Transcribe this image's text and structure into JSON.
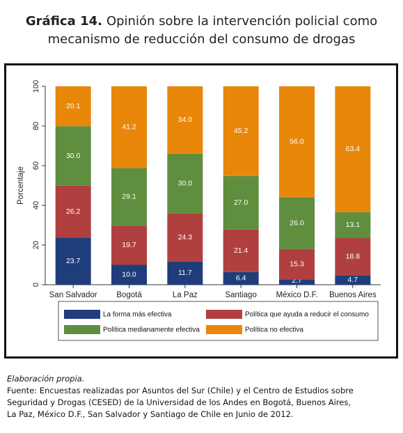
{
  "figure": {
    "label": "Gráfica 14.",
    "title_line1": "Opinión sobre la intervención policial como",
    "title_line2": "mecanismo de reducción del consumo de drogas"
  },
  "chart_data": {
    "type": "bar",
    "stacked": true,
    "ylabel": "Porcentaje",
    "ylim": [
      0,
      100
    ],
    "yticks": [
      "0",
      "20",
      "40",
      "60",
      "80",
      "100"
    ],
    "categories": [
      "San Salvador",
      "Bogotá",
      "La Paz",
      "Santiago",
      "México D.F.",
      "Buenos Aires"
    ],
    "series": [
      {
        "name": "La forma más efectiva",
        "color": "#1f3d7a",
        "values": [
          23.7,
          10.0,
          11.7,
          6.4,
          2.7,
          4.7
        ],
        "labels": [
          "23.7",
          "10.0",
          "11.7",
          "6.4",
          "2.7",
          "4.7"
        ]
      },
      {
        "name": "Política que ayuda a reducir el consumo",
        "color": "#b0403f",
        "values": [
          26.2,
          19.7,
          24.3,
          21.4,
          15.3,
          18.8
        ],
        "labels": [
          "26.2",
          "19.7",
          "24.3",
          "21.4",
          "15.3",
          "18.8"
        ]
      },
      {
        "name": "Política medianamente efectiva",
        "color": "#5e8e3e",
        "values": [
          30.0,
          29.1,
          30.0,
          27.0,
          26.0,
          13.1
        ],
        "labels": [
          "30.0",
          "29.1",
          "30.0",
          "27.0",
          "26.0",
          "13.1"
        ]
      },
      {
        "name": "Política no efectiva",
        "color": "#e8870a",
        "values": [
          20.1,
          41.2,
          34.0,
          45.2,
          56.0,
          63.4
        ],
        "labels": [
          "20.1",
          "41.2",
          "34.0",
          "45.2",
          "56.0",
          "63.4"
        ]
      }
    ],
    "legend_position": "bottom",
    "grid": false
  },
  "source": {
    "credit": "Elaboración propia.",
    "line1": "Fuente: Encuestas realizadas por Asuntos del Sur (Chile) y el Centro de Estudios sobre",
    "line2": "Seguridad y Drogas (CESED) de la Universidad de los Andes en Bogotá, Buenos Aires,",
    "line3": "La Paz, México D.F., San Salvador y Santiago de Chile en Junio de 2012."
  }
}
